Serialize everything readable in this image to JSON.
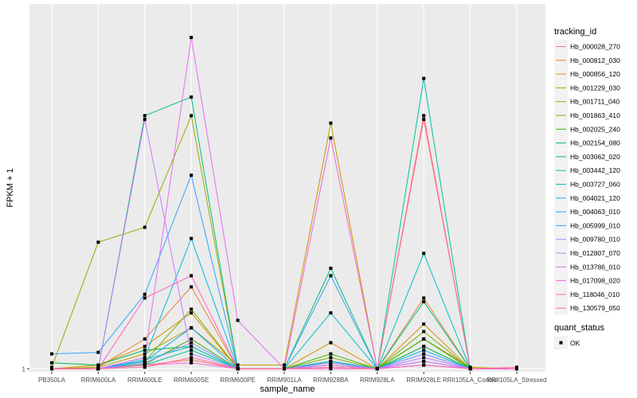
{
  "chart_data": {
    "type": "line",
    "title": "",
    "xlabel": "sample_name",
    "ylabel": "FPKM + 1",
    "y_ticks": [
      {
        "value": 1,
        "label": "1"
      }
    ],
    "ylim": [
      0.96,
      5.9
    ],
    "grid": true,
    "legend_position": "right",
    "categories": [
      "PB350LA",
      "RRIM600LA",
      "RRIM600LE",
      "RRIM600SE",
      "RRIM600PE",
      "RRIM901LA",
      "RRIM928BA",
      "RRIM928LA",
      "RRIM928LE",
      "RRII105LA_Control",
      "RRII105LA_Stressed"
    ],
    "legend": {
      "title": "tracking_id",
      "status_title": "quant_status",
      "status_label": "OK"
    },
    "series": [
      {
        "name": "Hb_000028_270",
        "color": "#F8766D",
        "values": [
          1.0,
          1.0,
          1.05,
          1.12,
          1.0,
          1.0,
          1.05,
          1.0,
          4.35,
          1.0,
          1.0
        ]
      },
      {
        "name": "Hb_000812_030",
        "color": "#EA8331",
        "values": [
          1.0,
          1.02,
          1.4,
          2.1,
          1.0,
          1.0,
          1.1,
          1.0,
          1.95,
          1.0,
          1.0
        ]
      },
      {
        "name": "Hb_000856_120",
        "color": "#D89000",
        "values": [
          1.0,
          1.05,
          1.3,
          1.75,
          1.0,
          1.0,
          1.35,
          1.0,
          1.6,
          1.0,
          1.0
        ]
      },
      {
        "name": "Hb_001229_030",
        "color": "#C09B00",
        "values": [
          1.0,
          1.02,
          1.2,
          1.55,
          1.05,
          1.05,
          4.3,
          1.0,
          1.4,
          1.02,
          1.0
        ]
      },
      {
        "name": "Hb_001711_040",
        "color": "#A3A500",
        "values": [
          1.02,
          2.7,
          2.9,
          4.4,
          1.0,
          1.0,
          1.08,
          1.0,
          1.3,
          1.0,
          1.0
        ]
      },
      {
        "name": "Hb_001863_410",
        "color": "#7CAE00",
        "values": [
          1.0,
          1.0,
          1.1,
          1.8,
          1.0,
          1.0,
          1.15,
          1.0,
          1.5,
          1.0,
          1.0
        ]
      },
      {
        "name": "Hb_002025_240",
        "color": "#39B600",
        "values": [
          1.0,
          1.0,
          1.06,
          1.4,
          1.0,
          1.0,
          1.2,
          1.0,
          1.4,
          1.0,
          1.0
        ]
      },
      {
        "name": "Hb_002154_080",
        "color": "#00BB4E",
        "values": [
          1.08,
          1.05,
          1.25,
          1.3,
          1.0,
          1.0,
          1.1,
          1.0,
          1.3,
          1.0,
          1.0
        ]
      },
      {
        "name": "Hb_003062_020",
        "color": "#00BF7D",
        "values": [
          1.0,
          1.0,
          4.4,
          4.65,
          1.0,
          1.0,
          2.35,
          1.0,
          1.9,
          1.0,
          1.0
        ]
      },
      {
        "name": "Hb_003442_120",
        "color": "#00C1A3",
        "values": [
          1.0,
          1.0,
          1.05,
          1.25,
          1.0,
          1.0,
          1.05,
          1.0,
          4.9,
          1.0,
          1.0
        ]
      },
      {
        "name": "Hb_003727_060",
        "color": "#00BFC4",
        "values": [
          1.0,
          1.0,
          1.12,
          1.3,
          1.0,
          1.0,
          1.75,
          1.0,
          2.55,
          1.0,
          1.0
        ]
      },
      {
        "name": "Hb_004021_120",
        "color": "#00BAE0",
        "values": [
          1.0,
          1.0,
          1.15,
          2.75,
          1.0,
          1.0,
          1.02,
          1.0,
          1.1,
          1.0,
          1.0
        ]
      },
      {
        "name": "Hb_004063_010",
        "color": "#00B0F6",
        "values": [
          1.0,
          1.0,
          1.1,
          1.55,
          1.0,
          1.0,
          1.1,
          1.0,
          1.25,
          1.0,
          1.0
        ]
      },
      {
        "name": "Hb_005999_010",
        "color": "#35A2FF",
        "values": [
          1.2,
          1.22,
          2.0,
          3.6,
          1.0,
          1.0,
          2.25,
          1.0,
          1.2,
          1.0,
          1.0
        ]
      },
      {
        "name": "Hb_009780_010",
        "color": "#9590FF",
        "values": [
          1.0,
          1.0,
          1.08,
          1.35,
          1.0,
          1.0,
          1.08,
          1.0,
          1.2,
          1.0,
          1.0
        ]
      },
      {
        "name": "Hb_012807_070",
        "color": "#C77CFF",
        "values": [
          1.0,
          1.0,
          4.35,
          1.2,
          1.0,
          1.0,
          1.02,
          1.0,
          1.15,
          1.0,
          1.0
        ]
      },
      {
        "name": "Hb_013786_010",
        "color": "#E76BF3",
        "values": [
          1.0,
          1.0,
          1.15,
          5.45,
          1.65,
          1.0,
          1.05,
          1.0,
          1.1,
          1.0,
          1.0
        ]
      },
      {
        "name": "Hb_017098_020",
        "color": "#FA62DB",
        "values": [
          1.0,
          1.0,
          1.05,
          1.08,
          1.0,
          1.0,
          4.1,
          1.0,
          1.05,
          1.0,
          1.0
        ]
      },
      {
        "name": "Hb_118046_010",
        "color": "#FF62BC",
        "values": [
          1.0,
          1.0,
          1.95,
          2.25,
          1.0,
          1.0,
          1.0,
          1.0,
          1.05,
          1.0,
          1.0
        ]
      },
      {
        "name": "Hb_130579_050",
        "color": "#FF6C91",
        "values": [
          1.0,
          1.0,
          1.02,
          1.15,
          1.0,
          1.0,
          1.02,
          1.0,
          4.4,
          1.0,
          1.02
        ]
      }
    ]
  }
}
